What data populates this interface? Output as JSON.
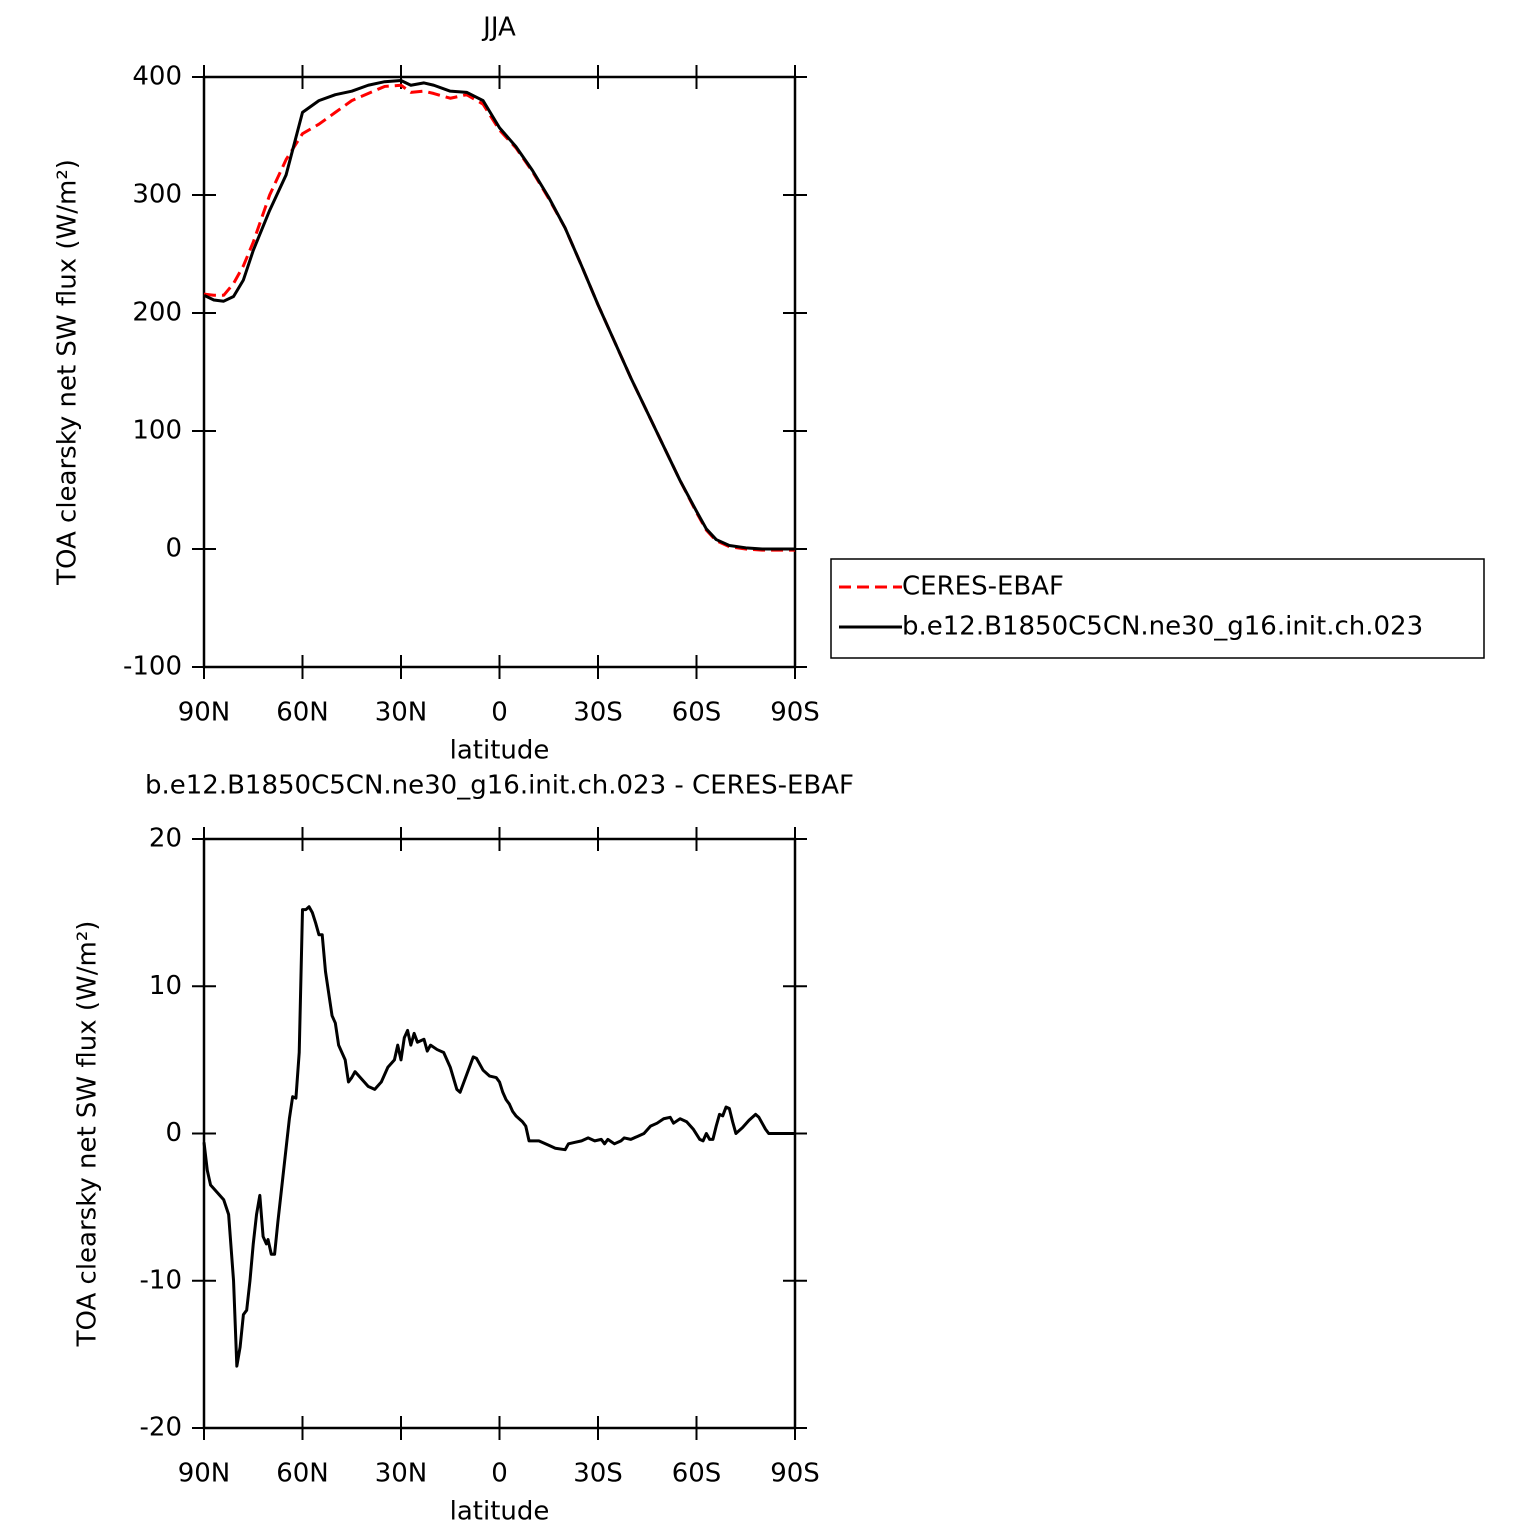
{
  "chart_data": [
    {
      "type": "line",
      "title": "JJA",
      "x_label": "latitude",
      "y_label": "TOA clearsky net SW flux (W/m²)",
      "xlim": [
        90,
        -90
      ],
      "xticks": [
        {
          "value": 90,
          "label": "90N"
        },
        {
          "value": 60,
          "label": "60N"
        },
        {
          "value": 30,
          "label": "30N"
        },
        0,
        {
          "value": -30,
          "label": "30S"
        },
        {
          "value": -60,
          "label": "60S"
        },
        {
          "value": -90,
          "label": "90S"
        }
      ],
      "ylim": [
        -100,
        400
      ],
      "yticks": [
        -100,
        0,
        100,
        200,
        300,
        400
      ],
      "legend": "right",
      "x": [
        90,
        87,
        84,
        81,
        78,
        75,
        70,
        65,
        60,
        55,
        50,
        45,
        40,
        35,
        30,
        27,
        23,
        20,
        15,
        10,
        5,
        0,
        -5,
        -10,
        -15,
        -20,
        -25,
        -30,
        -35,
        -40,
        -45,
        -50,
        -55,
        -60,
        -63,
        -66,
        -70,
        -75,
        -80,
        -85,
        -90
      ],
      "series": [
        {
          "name": "CERES-EBAF",
          "color": "#ff0000",
          "dash": "dashed",
          "values": [
            216,
            215,
            215,
            225,
            240,
            260,
            300,
            330,
            352,
            360,
            370,
            380,
            386,
            392,
            393,
            387,
            388,
            386,
            382,
            385,
            377,
            355,
            340,
            320,
            297,
            272,
            240,
            207,
            176,
            145,
            116,
            87,
            58,
            31,
            16,
            7,
            2,
            0,
            -1,
            -1,
            -1
          ]
        },
        {
          "name": "b.e12.B1850C5CN.ne30_g16.init.ch.023",
          "color": "#000000",
          "dash": "solid",
          "values": [
            215,
            211,
            210,
            214,
            228,
            253,
            287,
            317,
            370,
            380,
            385,
            388,
            393,
            396,
            397,
            393,
            395,
            393,
            388,
            387,
            380,
            357,
            341,
            321,
            298,
            272,
            240,
            207,
            176,
            145,
            116,
            87,
            58,
            32,
            17,
            8,
            3,
            1,
            0,
            0,
            0
          ]
        }
      ]
    },
    {
      "type": "line",
      "title": "b.e12.B1850C5CN.ne30_g16.init.ch.023 - CERES-EBAF",
      "x_label": "latitude",
      "y_label": "TOA clearsky net SW flux (W/m²)",
      "xlim": [
        90,
        -90
      ],
      "xticks": [
        {
          "value": 90,
          "label": "90N"
        },
        {
          "value": 60,
          "label": "60N"
        },
        {
          "value": 30,
          "label": "30N"
        },
        0,
        {
          "value": -30,
          "label": "30S"
        },
        {
          "value": -60,
          "label": "60S"
        },
        {
          "value": -90,
          "label": "90S"
        }
      ],
      "ylim": [
        -20,
        20
      ],
      "yticks": [
        -20,
        -10,
        0,
        10,
        20
      ],
      "color": "#000000",
      "x": [
        90,
        89,
        88,
        86,
        84,
        82.5,
        81,
        80,
        79,
        78,
        77,
        76,
        75,
        74,
        73,
        72,
        71,
        70.5,
        69.5,
        68.5,
        67.5,
        66,
        64,
        63,
        62,
        61,
        60,
        59,
        58,
        57,
        56,
        55,
        54,
        53,
        51,
        50,
        49,
        47,
        46,
        45,
        44,
        42,
        40,
        38,
        36,
        34,
        32,
        31,
        30,
        29,
        28,
        27,
        26,
        25,
        23,
        22,
        21,
        19,
        17,
        15,
        13,
        12,
        10,
        8,
        7,
        5,
        3,
        1,
        0,
        -1,
        -2,
        -3,
        -4,
        -5,
        -7,
        -8,
        -9,
        -12,
        -15,
        -17,
        -20,
        -21,
        -23,
        -25,
        -27,
        -29,
        -31,
        -32,
        -33,
        -35,
        -37,
        -38,
        -40,
        -42,
        -44,
        -46,
        -48,
        -50,
        -52,
        -53,
        -55,
        -57,
        -59,
        -61,
        -62,
        -63,
        -64,
        -65,
        -66,
        -67,
        -68,
        -69,
        -70,
        -71,
        -72,
        -74,
        -76,
        -78,
        -79,
        -81,
        -82,
        -85,
        -90
      ],
      "values": [
        -0.6,
        -2.5,
        -3.5,
        -4,
        -4.5,
        -5.5,
        -10,
        -15.8,
        -14.5,
        -12.3,
        -12,
        -10,
        -7.5,
        -5.5,
        -4.2,
        -7,
        -7.5,
        -7.2,
        -8.2,
        -8.2,
        -6,
        -3,
        1,
        2.5,
        2.4,
        5.5,
        15.2,
        15.2,
        15.4,
        15,
        14.3,
        13.5,
        13.5,
        11,
        8,
        7.5,
        6,
        5,
        3.5,
        3.8,
        4.2,
        3.7,
        3.2,
        3,
        3.5,
        4.5,
        5,
        6,
        5,
        6.5,
        7,
        6,
        6.8,
        6.2,
        6.4,
        5.6,
        6,
        5.7,
        5.5,
        4.5,
        3,
        2.8,
        4,
        5.2,
        5.1,
        4.3,
        3.9,
        3.8,
        3.5,
        2.8,
        2.3,
        2,
        1.5,
        1.2,
        0.8,
        0.5,
        -0.5,
        -0.5,
        -0.8,
        -1,
        -1.1,
        -0.7,
        -0.6,
        -0.5,
        -0.3,
        -0.5,
        -0.4,
        -0.7,
        -0.4,
        -0.7,
        -0.5,
        -0.3,
        -0.4,
        -0.2,
        0,
        0.5,
        0.7,
        1,
        1.1,
        0.7,
        1,
        0.8,
        0.3,
        -0.4,
        -0.5,
        0,
        -0.4,
        -0.4,
        0.5,
        1.3,
        1.2,
        1.8,
        1.7,
        0.8,
        0,
        0.4,
        0.9,
        1.3,
        1.1,
        0.3,
        0,
        0,
        0
      ]
    }
  ]
}
